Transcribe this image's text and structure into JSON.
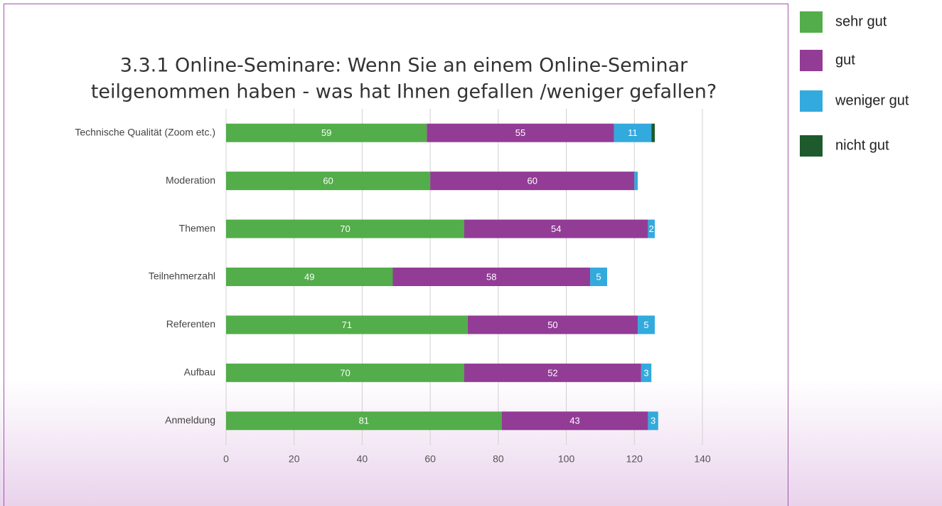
{
  "chart_data": {
    "type": "stacked-bar-horizontal",
    "title": [
      "3.3.1 Online-Seminare: Wenn Sie an einem Online-Seminar",
      "teilgenommen haben - was hat Ihnen gefallen /weniger gefallen?"
    ],
    "categories": [
      "Technische Qualität (Zoom etc.)",
      "Moderation",
      "Themen",
      "Teilnehmerzahl",
      "Referenten",
      "Aufbau",
      "Anmeldung"
    ],
    "series": [
      {
        "name": "sehr gut",
        "color": "#52ad4a",
        "values": [
          59,
          60,
          70,
          49,
          71,
          70,
          81
        ]
      },
      {
        "name": "gut",
        "color": "#923c96",
        "values": [
          55,
          60,
          54,
          58,
          50,
          52,
          43
        ]
      },
      {
        "name": "weniger gut",
        "color": "#33aadd",
        "values": [
          11,
          1,
          2,
          5,
          5,
          3,
          3
        ]
      },
      {
        "name": "nicht gut",
        "color": "#1e5a2c",
        "values": [
          1,
          0,
          0,
          0,
          0,
          0,
          0
        ]
      }
    ],
    "xlim": [
      0,
      140
    ],
    "xticks": [
      0,
      20,
      40,
      60,
      80,
      100,
      120,
      140
    ],
    "grid": true,
    "legend": "right"
  }
}
